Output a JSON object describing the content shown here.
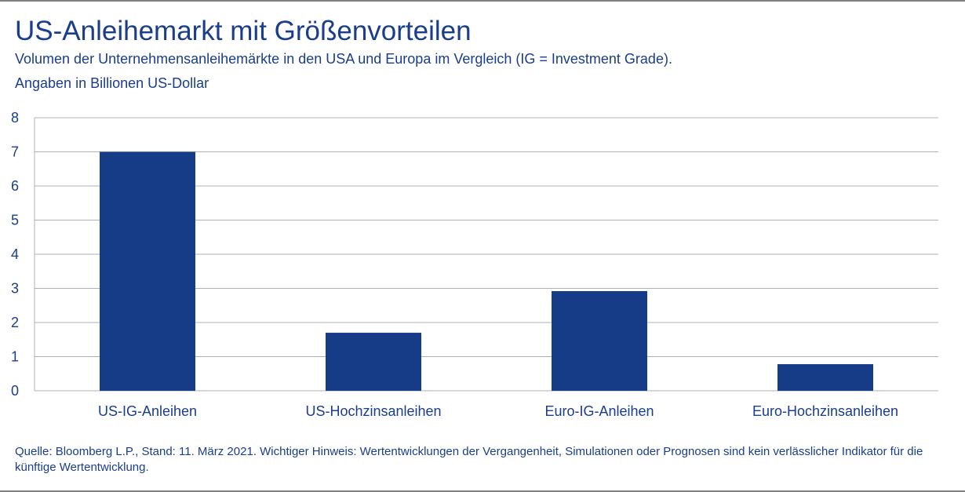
{
  "header": {
    "title": "US-Anleihemarkt mit Größenvorteilen",
    "subtitle_line1": "Volumen der Unternehmensanleihemärkte in den USA und Europa im Vergleich (IG = Investment Grade).",
    "subtitle_line2": "Angaben in Billionen US-Dollar"
  },
  "footer": {
    "note": "Quelle: Bloomberg L.P., Stand: 11. März 2021. Wichtiger Hinweis: Wertentwicklungen der Vergangenheit, Simulationen oder Prognosen sind kein verlässlicher Indikator für die künftige Wertentwicklung."
  },
  "colors": {
    "bar": "#163c88",
    "text": "#1a3d8c",
    "grid": "#b0b0b0"
  },
  "chart_data": {
    "type": "bar",
    "categories": [
      "US-IG-Anleihen",
      "US-Hochzinsanleihen",
      "Euro-IG-Anleihen",
      "Euro-Hochzinsanleihen"
    ],
    "values": [
      7.0,
      1.7,
      2.92,
      0.78
    ],
    "title": "US-Anleihemarkt mit Größenvorteilen",
    "xlabel": "",
    "ylabel": "",
    "ylim": [
      0,
      8
    ],
    "yticks": [
      0,
      1,
      2,
      3,
      4,
      5,
      6,
      7,
      8
    ],
    "grid": true,
    "legend": "none"
  }
}
